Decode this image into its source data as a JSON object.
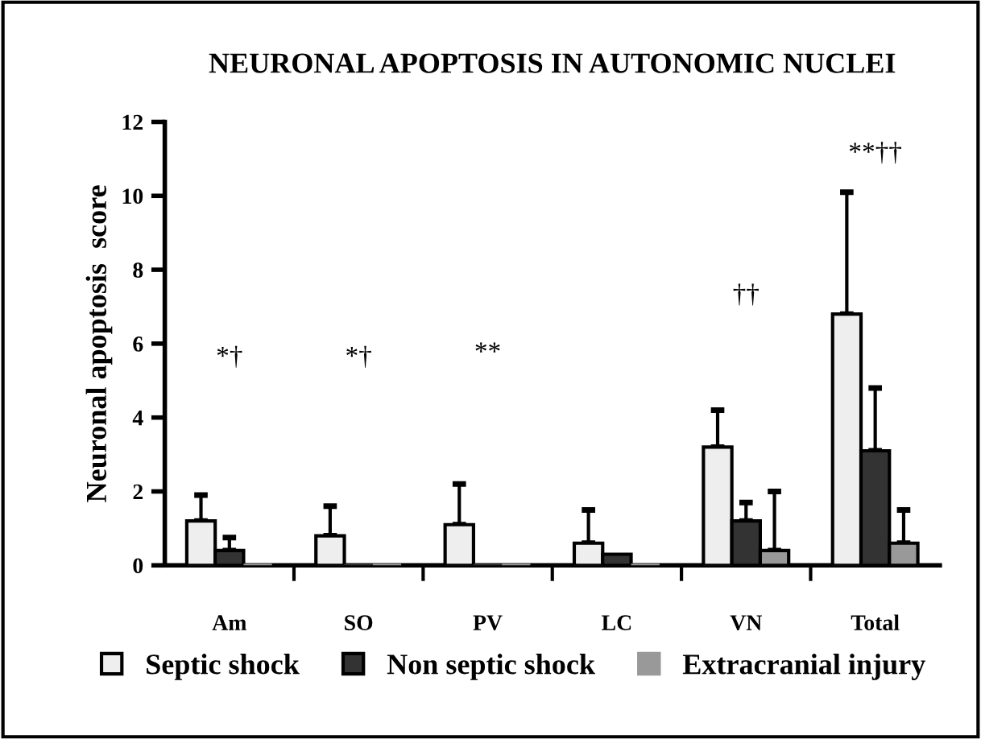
{
  "chart_data": {
    "type": "bar",
    "title": "NEURONAL APOPTOSIS IN AUTONOMIC NUCLEI",
    "ylabel": "Neuronal apoptosis  score",
    "categories": [
      "Am",
      "SO",
      "PV",
      "LC",
      "VN",
      "Total"
    ],
    "series": [
      {
        "name": "Septic shock",
        "color": "#eeeeee",
        "values": [
          1.2,
          0.8,
          1.1,
          0.6,
          3.2,
          6.8
        ],
        "errors": [
          [
            1.2,
            1.9
          ],
          [
            0.8,
            1.6
          ],
          [
            1.1,
            2.2
          ],
          [
            0.6,
            1.5
          ],
          [
            3.2,
            4.2
          ],
          [
            6.8,
            10.1
          ]
        ]
      },
      {
        "name": "Non septic shock",
        "color": "#333333",
        "values": [
          0.4,
          0,
          0,
          0.3,
          1.2,
          3.1
        ],
        "errors": [
          [
            0.4,
            0.75
          ],
          null,
          null,
          null,
          [
            1.2,
            1.7
          ],
          [
            3.1,
            4.8
          ]
        ]
      },
      {
        "name": "Extracranial injury",
        "color": "#999999",
        "values": [
          0,
          0,
          0,
          0,
          0.4,
          0.6
        ],
        "errors": [
          null,
          null,
          null,
          null,
          [
            0.4,
            2.0
          ],
          [
            0.6,
            1.5
          ]
        ]
      }
    ],
    "annotations": [
      "*†",
      "*†",
      "**",
      "††",
      "**††"
    ],
    "ylim": [
      0,
      12
    ],
    "yticks": [
      0,
      2,
      4,
      6,
      8,
      10,
      12
    ],
    "grid": false,
    "legend": "bottom"
  }
}
